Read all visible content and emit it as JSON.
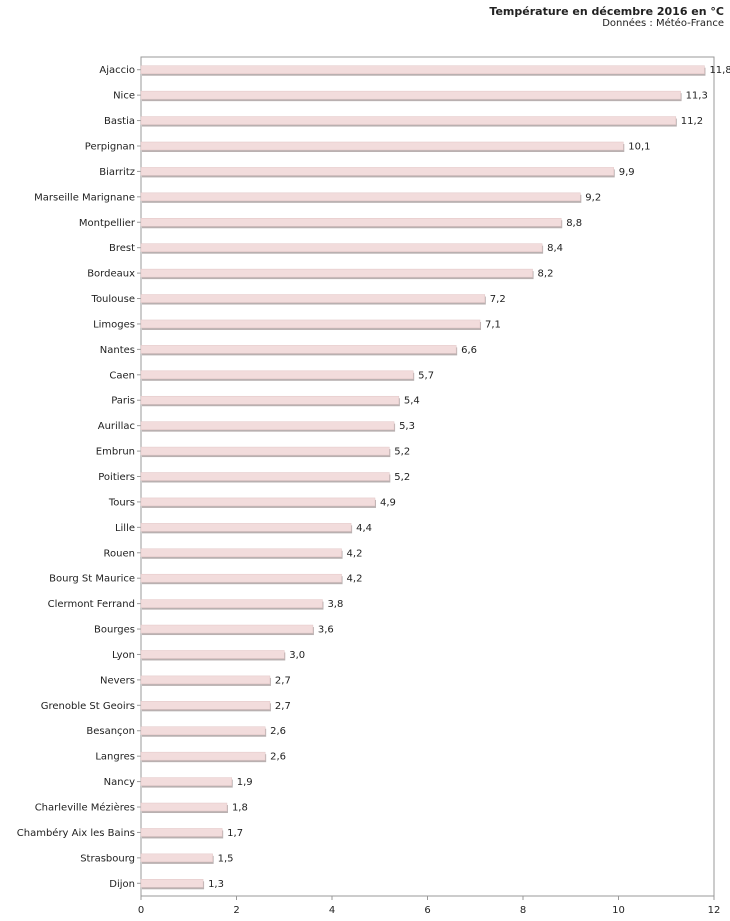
{
  "chart_data": {
    "type": "bar",
    "orientation": "horizontal",
    "title": "Température en décembre 2016 en °C",
    "subtitle": "Données : Météo-France",
    "categories": [
      "Ajaccio",
      "Nice",
      "Bastia",
      "Perpignan",
      "Biarritz",
      "Marseille Marignane",
      "Montpellier",
      "Brest",
      "Bordeaux",
      "Toulouse",
      "Limoges",
      "Nantes",
      "Caen",
      "Paris",
      "Aurillac",
      "Embrun",
      "Poitiers",
      "Tours",
      "Lille",
      "Rouen",
      "Bourg St Maurice",
      "Clermont Ferrand",
      "Bourges",
      "Lyon",
      "Nevers",
      "Grenoble St Geoirs",
      "Besançon",
      "Langres",
      "Nancy",
      "Charleville Mézières",
      "Chambéry Aix les Bains",
      "Strasbourg",
      "Dijon"
    ],
    "values": [
      11.8,
      11.3,
      11.2,
      10.1,
      9.9,
      9.2,
      8.8,
      8.4,
      8.2,
      7.2,
      7.1,
      6.6,
      5.7,
      5.4,
      5.3,
      5.2,
      5.2,
      4.9,
      4.4,
      4.2,
      4.2,
      3.8,
      3.6,
      3.0,
      2.7,
      2.7,
      2.6,
      2.6,
      1.9,
      1.8,
      1.7,
      1.5,
      1.3
    ],
    "value_labels": [
      "11,8",
      "11,3",
      "11,2",
      "10,1",
      "9,9",
      "9,2",
      "8,8",
      "8,4",
      "8,2",
      "7,2",
      "7,1",
      "6,6",
      "5,7",
      "5,4",
      "5,3",
      "5,2",
      "5,2",
      "4,9",
      "4,4",
      "4,2",
      "4,2",
      "3,8",
      "3,6",
      "3,0",
      "2,7",
      "2,7",
      "2,6",
      "2,6",
      "1,9",
      "1,8",
      "1,7",
      "1,5",
      "1,3"
    ],
    "xlim": [
      0,
      12
    ],
    "xticks": [
      "0",
      "2",
      "4",
      "6",
      "8",
      "10",
      "12"
    ],
    "xlabel": "",
    "ylabel": "",
    "grid": false,
    "colors": {
      "bar_fill": "#f2dcdc",
      "bar_shadow": "#b9b0b0",
      "axis": "#999999"
    }
  }
}
